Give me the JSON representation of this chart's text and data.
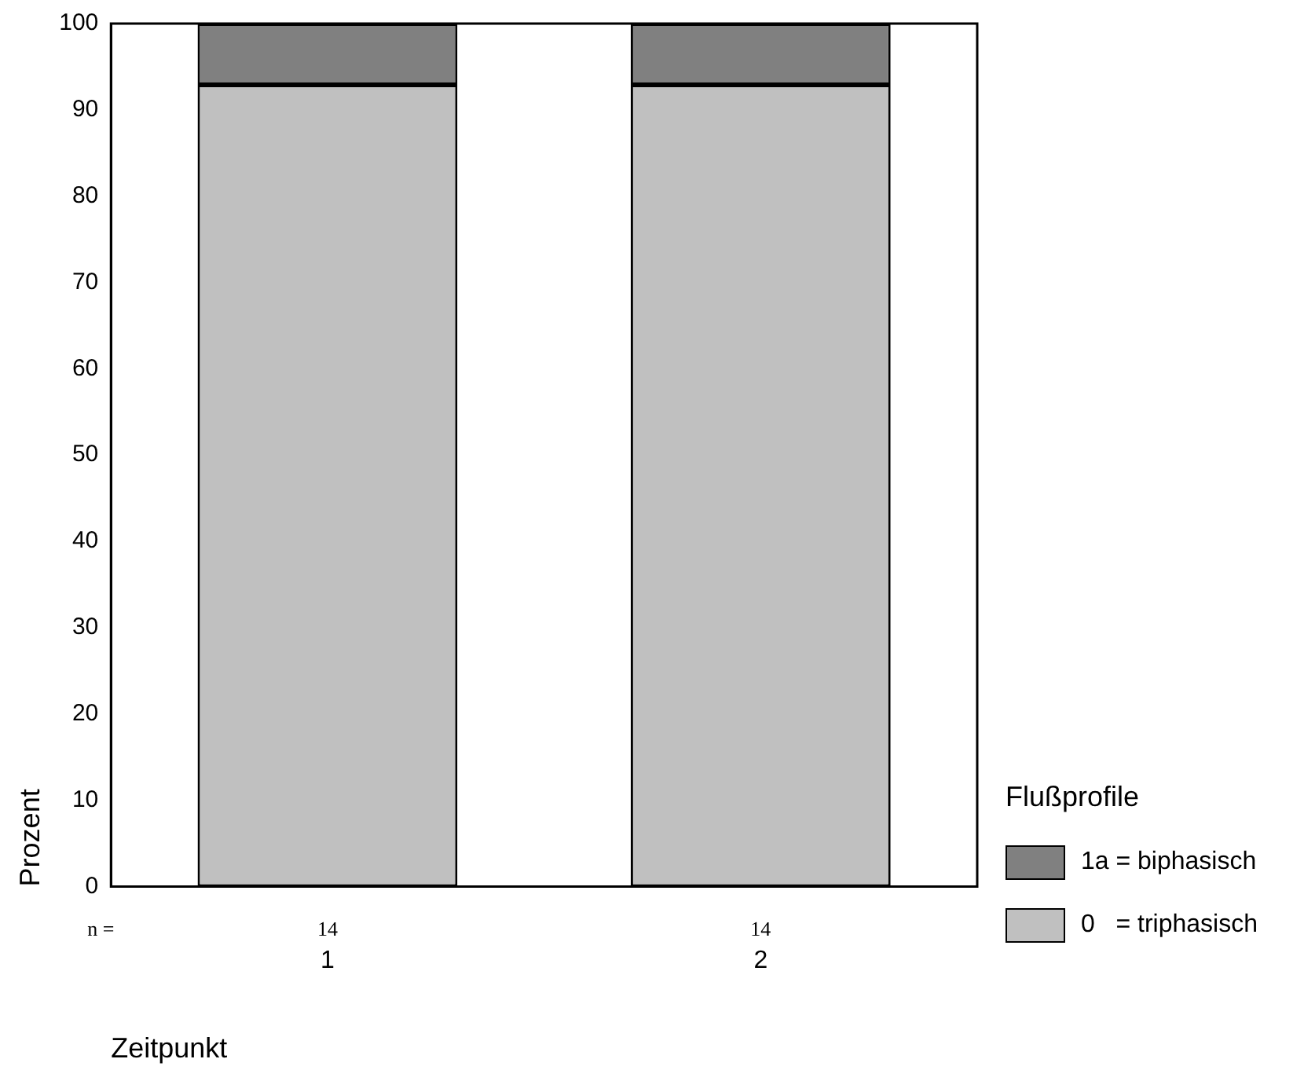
{
  "chart_data": {
    "type": "bar",
    "stacked": true,
    "xlabel": "Zeitpunkt",
    "ylabel": "Prozent",
    "legend_title": "Flußprofile",
    "legend": "bottom right",
    "categories": [
      "1",
      "2"
    ],
    "series": [
      {
        "name": "0   = triphasisch",
        "color": "#c0c0c0",
        "values": [
          92.9,
          92.9
        ]
      },
      {
        "name": "1a = biphasisch",
        "color": "#808080",
        "values": [
          7.1,
          7.1
        ]
      }
    ],
    "ylim": [
      0,
      100
    ],
    "yticks": [
      0,
      10,
      20,
      30,
      40,
      50,
      60,
      70,
      80,
      90,
      100
    ],
    "annotations": [
      "n =",
      "14",
      "14"
    ]
  }
}
